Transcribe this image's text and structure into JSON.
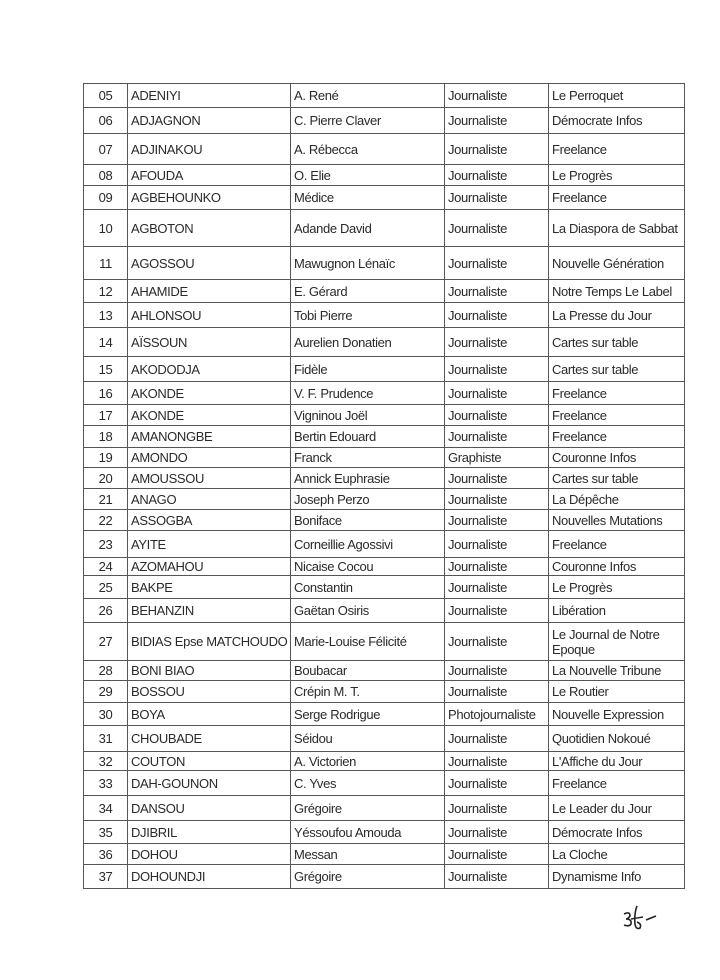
{
  "rows": [
    {
      "no": "05",
      "surname": "ADENIYI",
      "first_name": "A. René",
      "role": "Journaliste",
      "media": "Le Perroquet"
    },
    {
      "no": "06",
      "surname": "ADJAGNON",
      "first_name": "C. Pierre Claver",
      "role": "Journaliste",
      "media": "Démocrate Infos"
    },
    {
      "no": "07",
      "surname": "ADJINAKOU",
      "first_name": "A. Rébecca",
      "role": "Journaliste",
      "media": "Freelance"
    },
    {
      "no": "08",
      "surname": "AFOUDA",
      "first_name": "O. Elie",
      "role": "Journaliste",
      "media": "Le Progrès"
    },
    {
      "no": "09",
      "surname": "AGBEHOUNKO",
      "first_name": "Médice",
      "role": "Journaliste",
      "media": "Freelance"
    },
    {
      "no": "10",
      "surname": "AGBOTON",
      "first_name": "Adande David",
      "role": "Journaliste",
      "media": "La Diaspora de Sabbat"
    },
    {
      "no": "11",
      "surname": "AGOSSOU",
      "first_name": "Mawugnon Lénaïc",
      "role": "Journaliste",
      "media": "Nouvelle Génération"
    },
    {
      "no": "12",
      "surname": "AHAMIDE",
      "first_name": "E. Gérard",
      "role": "Journaliste",
      "media": "Notre Temps Le Label"
    },
    {
      "no": "13",
      "surname": "AHLONSOU",
      "first_name": "Tobi Pierre",
      "role": "Journaliste",
      "media": "La Presse du Jour"
    },
    {
      "no": "14",
      "surname": "AÏSSOUN",
      "first_name": "Aurelien Donatien",
      "role": "Journaliste",
      "media": "Cartes sur table"
    },
    {
      "no": "15",
      "surname": "AKODODJA",
      "first_name": "Fidèle",
      "role": "Journaliste",
      "media": "Cartes sur table"
    },
    {
      "no": "16",
      "surname": "AKONDE",
      "first_name": "V. F. Prudence",
      "role": "Journaliste",
      "media": "Freelance"
    },
    {
      "no": "17",
      "surname": "AKONDE",
      "first_name": "Vigninou Joël",
      "role": "Journaliste",
      "media": "Freelance"
    },
    {
      "no": "18",
      "surname": "AMANONGBE",
      "first_name": "Bertin Edouard",
      "role": "Journaliste",
      "media": "Freelance"
    },
    {
      "no": "19",
      "surname": "AMONDO",
      "first_name": "Franck",
      "role": "Graphiste",
      "media": "Couronne Infos"
    },
    {
      "no": "20",
      "surname": "AMOUSSOU",
      "first_name": "Annick Euphrasie",
      "role": "Journaliste",
      "media": "Cartes sur table"
    },
    {
      "no": "21",
      "surname": "ANAGO",
      "first_name": "Joseph Perzo",
      "role": "Journaliste",
      "media": "La Dépêche"
    },
    {
      "no": "22",
      "surname": "ASSOGBA",
      "first_name": "Boniface",
      "role": "Journaliste",
      "media": "Nouvelles Mutations"
    },
    {
      "no": "23",
      "surname": "AYITE",
      "first_name": "Corneillie Agossivi",
      "role": "Journaliste",
      "media": "Freelance"
    },
    {
      "no": "24",
      "surname": "AZOMAHOU",
      "first_name": "Nicaise Cocou",
      "role": "Journaliste",
      "media": "Couronne Infos"
    },
    {
      "no": "25",
      "surname": "BAKPE",
      "first_name": "Constantin",
      "role": "Journaliste",
      "media": "Le Progrès"
    },
    {
      "no": "26",
      "surname": "BEHANZIN",
      "first_name": "Gaëtan Osiris",
      "role": "Journaliste",
      "media": "Libération"
    },
    {
      "no": "27",
      "surname": "BIDIAS Epse MATCHOUDO",
      "first_name": "Marie-Louise Félicité",
      "role": "Journaliste",
      "media": "Le Journal de Notre Epoque"
    },
    {
      "no": "28",
      "surname": "BONI BIAO",
      "first_name": "Boubacar",
      "role": "Journaliste",
      "media": "La Nouvelle Tribune"
    },
    {
      "no": "29",
      "surname": "BOSSOU",
      "first_name": "Crépin M. T.",
      "role": "Journaliste",
      "media": "Le Routier"
    },
    {
      "no": "30",
      "surname": "BOYA",
      "first_name": "Serge Rodrigue",
      "role": "Photojournaliste",
      "media": "Nouvelle Expression"
    },
    {
      "no": "31",
      "surname": "CHOUBADE",
      "first_name": "Séidou",
      "role": "Journaliste",
      "media": "Quotidien Nokoué"
    },
    {
      "no": "32",
      "surname": "COUTON",
      "first_name": "A. Victorien",
      "role": "Journaliste",
      "media": "L'Affiche du Jour"
    },
    {
      "no": "33",
      "surname": "DAH-GOUNON",
      "first_name": "C. Yves",
      "role": "Journaliste",
      "media": "Freelance"
    },
    {
      "no": "34",
      "surname": "DANSOU",
      "first_name": "Grégoire",
      "role": "Journaliste",
      "media": "Le Leader du Jour"
    },
    {
      "no": "35",
      "surname": "DJIBRIL",
      "first_name": "Yéssoufou Amouda",
      "role": "Journaliste",
      "media": "Démocrate Infos"
    },
    {
      "no": "36",
      "surname": "DOHOU",
      "first_name": "Messan",
      "role": "Journaliste",
      "media": "La Cloche"
    },
    {
      "no": "37",
      "surname": "DOHOUNDJI",
      "first_name": "Grégoire",
      "role": "Journaliste",
      "media": "Dynamisme Info"
    }
  ],
  "signature": "3f-"
}
